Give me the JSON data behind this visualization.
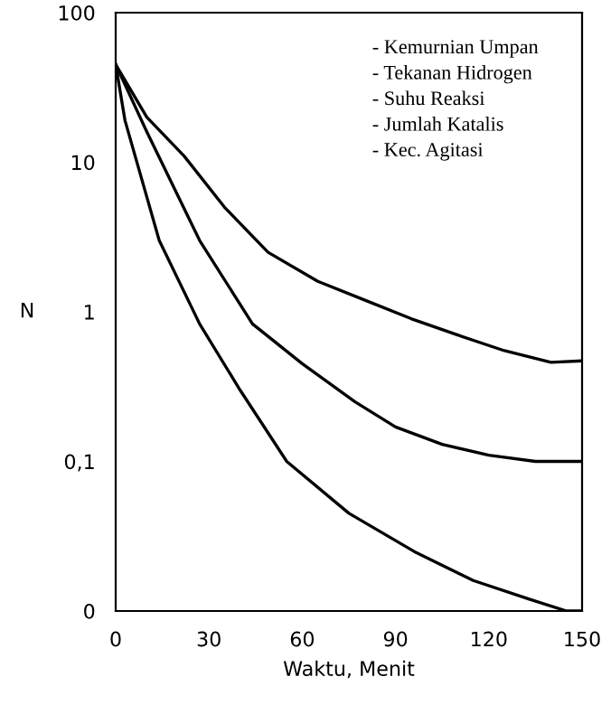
{
  "chart_data": {
    "type": "line",
    "xlabel": "Waktu, Menit",
    "ylabel": "N",
    "log": "y",
    "xlim": [
      0,
      150
    ],
    "xticks": [
      0,
      30,
      60,
      90,
      120,
      150
    ],
    "ylim": [
      0.01,
      100
    ],
    "yticks": [
      {
        "value": 0.01,
        "label": "0"
      },
      {
        "value": 0.1,
        "label": "0,1"
      },
      1,
      10,
      100
    ],
    "grid": false,
    "marker": "none",
    "line_style": "solid",
    "annotations": [
      "- Kemurnian Umpan",
      "- Tekanan Hidrogen",
      "- Suhu Reaksi",
      "- Jumlah Katalis",
      "- Kec. Agitasi"
    ],
    "series": [
      {
        "color": "#000000",
        "x": [
          0,
          10,
          22,
          35,
          49,
          65,
          80,
          95,
          110,
          125,
          140,
          150
        ],
        "values": [
          45,
          20,
          11,
          5,
          2.5,
          1.6,
          1.2,
          0.9,
          0.7,
          0.55,
          0.46,
          0.47
        ]
      },
      {
        "color": "#000000",
        "x": [
          0,
          10,
          27,
          44,
          60,
          77,
          90,
          105,
          120,
          135,
          150
        ],
        "values": [
          45,
          16,
          3,
          0.83,
          0.45,
          0.25,
          0.17,
          0.13,
          0.11,
          0.1,
          0.1
        ]
      },
      {
        "color": "#000000",
        "x": [
          0,
          3,
          14,
          27,
          40,
          55,
          75,
          96,
          115,
          133,
          145,
          150
        ],
        "values": [
          45,
          19,
          3,
          0.83,
          0.3,
          0.1,
          0.045,
          0.025,
          0.016,
          0.012,
          0.01,
          0.01
        ]
      }
    ]
  }
}
